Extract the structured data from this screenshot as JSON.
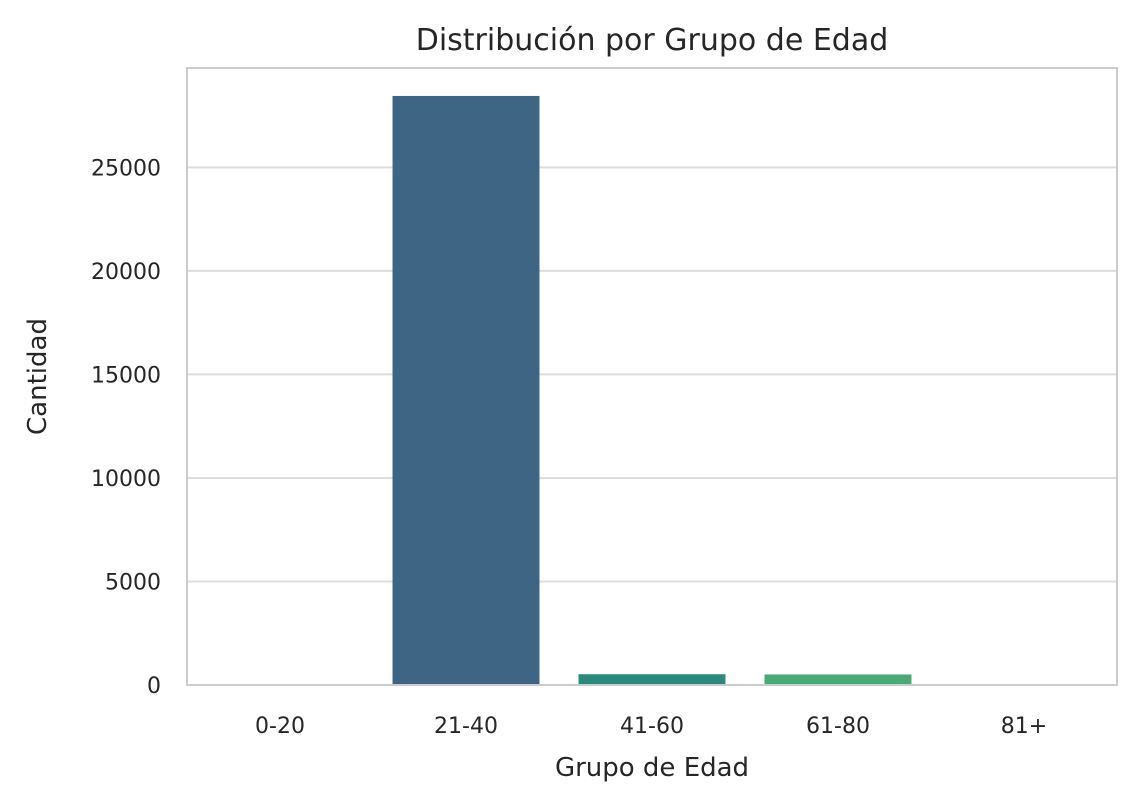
{
  "chart_data": {
    "type": "bar",
    "title": "Distribución por Grupo de Edad",
    "xlabel": "Grupo de Edad",
    "ylabel": "Cantidad",
    "categories": [
      "0-20",
      "21-40",
      "41-60",
      "61-80",
      "81+"
    ],
    "values": [
      40,
      28450,
      520,
      510,
      30
    ],
    "colors": [
      "#46327e",
      "#3e6583",
      "#2a8a7e",
      "#48ab77",
      "#74c95f"
    ],
    "ylim": [
      0,
      29800
    ],
    "yticks": [
      0,
      5000,
      10000,
      15000,
      20000,
      25000
    ],
    "ytick_labels": [
      "0",
      "5000",
      "10000",
      "15000",
      "20000",
      "25000"
    ],
    "grid": "y",
    "legend": "none"
  }
}
